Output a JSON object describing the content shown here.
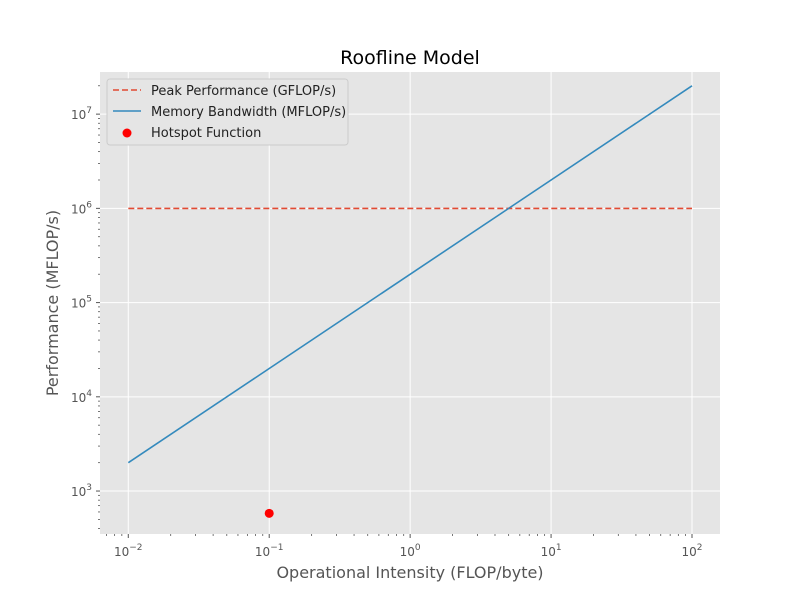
{
  "chart_data": {
    "type": "line",
    "title": "Roofline Model",
    "xlabel": "Operational Intensity (FLOP/byte)",
    "ylabel": "Performance (MFLOP/s)",
    "xscale": "log",
    "yscale": "log",
    "xlim": [
      0.0063,
      158
    ],
    "ylim": [
      350,
      28000000
    ],
    "grid": true,
    "legend_position": "top-left",
    "x_ticks": [
      {
        "value": 0.01,
        "base": "10",
        "exp": "−2"
      },
      {
        "value": 0.1,
        "base": "10",
        "exp": "−1"
      },
      {
        "value": 1,
        "base": "10",
        "exp": "0"
      },
      {
        "value": 10,
        "base": "10",
        "exp": "1"
      },
      {
        "value": 100,
        "base": "10",
        "exp": "2"
      }
    ],
    "y_ticks": [
      {
        "value": 1000,
        "base": "10",
        "exp": "3"
      },
      {
        "value": 10000,
        "base": "10",
        "exp": "4"
      },
      {
        "value": 100000,
        "base": "10",
        "exp": "5"
      },
      {
        "value": 1000000,
        "base": "10",
        "exp": "6"
      },
      {
        "value": 10000000,
        "base": "10",
        "exp": "7"
      }
    ],
    "series": [
      {
        "name": "Peak Performance (GFLOP/s)",
        "kind": "line",
        "style": "dashed",
        "color": "#E24A33",
        "x": [
          0.01,
          100
        ],
        "y": [
          1000000,
          1000000
        ]
      },
      {
        "name": "Memory Bandwidth (MFLOP/s)",
        "kind": "line",
        "style": "solid",
        "color": "#348ABD",
        "x": [
          0.01,
          100
        ],
        "y": [
          2000,
          20000000
        ]
      },
      {
        "name": "Hotspot Function",
        "kind": "scatter",
        "color": "#FF0000",
        "x": [
          0.1
        ],
        "y": [
          580
        ]
      }
    ]
  }
}
